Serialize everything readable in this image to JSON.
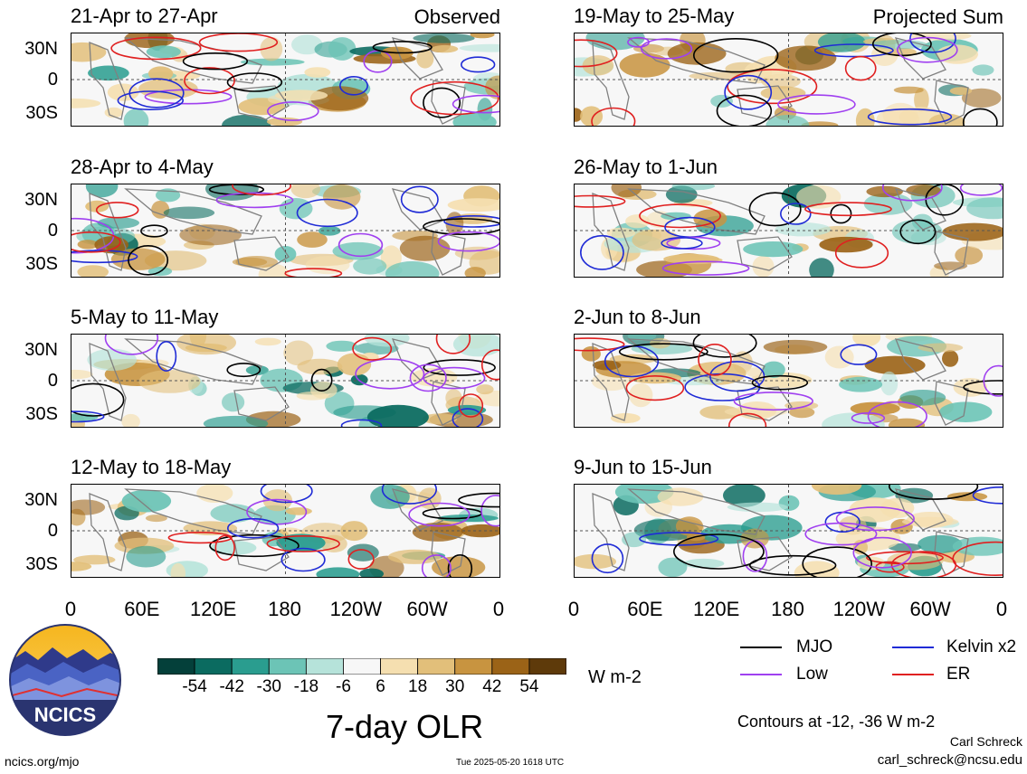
{
  "columns": [
    {
      "corner_label": "Observed"
    },
    {
      "corner_label": "Projected Sum"
    }
  ],
  "panels": [
    {
      "title": "21-Apr to 27-Apr",
      "col": 0,
      "row": 0
    },
    {
      "title": "28-Apr to 4-May",
      "col": 0,
      "row": 1
    },
    {
      "title": "5-May to 11-May",
      "col": 0,
      "row": 2
    },
    {
      "title": "12-May to 18-May",
      "col": 0,
      "row": 3
    },
    {
      "title": "19-May to 25-May",
      "col": 1,
      "row": 0
    },
    {
      "title": "26-May to 1-Jun",
      "col": 1,
      "row": 1
    },
    {
      "title": "2-Jun to 8-Jun",
      "col": 1,
      "row": 2
    },
    {
      "title": "9-Jun to 15-Jun",
      "col": 1,
      "row": 3
    }
  ],
  "axes": {
    "y_ticks": [
      "30N",
      "0",
      "30S"
    ],
    "x_ticks": [
      "0",
      "60E",
      "120E",
      "180",
      "120W",
      "60W",
      "0"
    ]
  },
  "colorbar": {
    "labels": [
      "-54",
      "-42",
      "-30",
      "-18",
      "-6",
      "6",
      "18",
      "30",
      "42",
      "54"
    ],
    "colors": [
      "#04403a",
      "#0b6b60",
      "#2a9d8f",
      "#6cc4b6",
      "#b6e3da",
      "#f7f7f7",
      "#f5dfb0",
      "#e2bf7a",
      "#c89440",
      "#9b6317",
      "#5e3a0a"
    ],
    "units": "W m-2"
  },
  "legend": [
    {
      "label": "MJO",
      "color": "#000000"
    },
    {
      "label": "Kelvin x2",
      "color": "#1f2bd6"
    },
    {
      "label": "Low",
      "color": "#a040f0"
    },
    {
      "label": "ER",
      "color": "#e02020"
    }
  ],
  "footer": {
    "main_title": "7-day OLR",
    "contour_note": "Contours at -12, -36 W m-2",
    "author": "Carl Schreck",
    "email": "carl_schreck@ncsu.edu",
    "url": "ncics.org/mjo",
    "timestamp": "Tue 2025-05-20 1618 UTC",
    "logo_text": "NCICS"
  },
  "chart_data": {
    "type": "heatmap",
    "variable": "7-day OLR anomaly",
    "units": "W m-2",
    "panel_titles": [
      "21-Apr to 27-Apr",
      "28-Apr to 4-May",
      "5-May to 11-May",
      "12-May to 18-May",
      "19-May to 25-May",
      "26-May to 1-Jun",
      "2-Jun to 8-Jun",
      "9-Jun to 15-Jun"
    ],
    "x_ticks": [
      "0",
      "60E",
      "120E",
      "180",
      "120W",
      "60W",
      "0"
    ],
    "y_ticks": [
      "30N",
      "0",
      "30S"
    ],
    "color_levels": [
      -54,
      -42,
      -30,
      -18,
      -6,
      6,
      18,
      30,
      42,
      54
    ],
    "contour_levels": [
      -12,
      -36
    ]
  }
}
